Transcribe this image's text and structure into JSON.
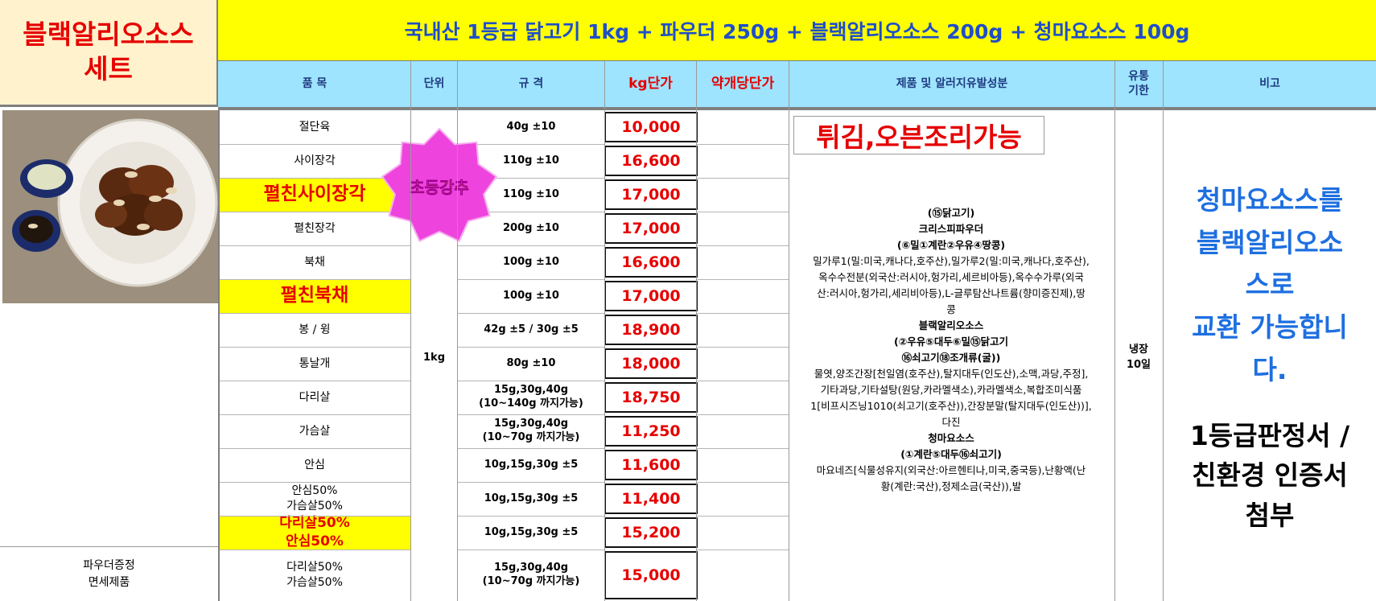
{
  "set_title": [
    "블랙알리오소스",
    "세트"
  ],
  "banner": "국내산 1등급 닭고기 1kg + 파우더 250g + 블랙알리오소스 200g + 청마요소스 100g",
  "headers": {
    "item": "품 목",
    "unit": "단위",
    "spec": "규 격",
    "kg_price": "kg단가",
    "approx_price": "약개당단가",
    "allergen": "제품 및 알러지유발성분",
    "shelf": [
      "유통",
      "기한"
    ],
    "note": "비고"
  },
  "rows": [
    {
      "item": [
        "절단육"
      ],
      "spec": [
        "40g ±10"
      ],
      "price": "10,000"
    },
    {
      "item": [
        "사이장각"
      ],
      "spec": [
        "110g ±10"
      ],
      "price": "16,600"
    },
    {
      "item": [
        "펼친사이장각"
      ],
      "spec": [
        "110g ±10"
      ],
      "price": "17,000",
      "highlight": true
    },
    {
      "item": [
        "펼친장각"
      ],
      "spec": [
        "200g ±10"
      ],
      "price": "17,000"
    },
    {
      "item": [
        "북채"
      ],
      "spec": [
        "100g ±10"
      ],
      "price": "16,600"
    },
    {
      "item": [
        "펼친북채"
      ],
      "spec": [
        "100g ±10"
      ],
      "price": "17,000",
      "highlight": true
    },
    {
      "item": [
        "봉 / 윙"
      ],
      "spec": [
        "42g ±5 / 30g ±5"
      ],
      "price": "18,900"
    },
    {
      "item": [
        "통날개"
      ],
      "spec": [
        "80g ±10"
      ],
      "price": "18,000"
    },
    {
      "item": [
        "다리살"
      ],
      "spec": [
        "15g,30g,40g",
        "(10~140g 까지가능)"
      ],
      "price": "18,750"
    },
    {
      "item": [
        "가슴살"
      ],
      "spec": [
        "15g,30g,40g",
        "(10~70g 까지가능)"
      ],
      "price": "11,250"
    },
    {
      "item": [
        "안심"
      ],
      "spec": [
        "10g,15g,30g ±5"
      ],
      "price": "11,600"
    },
    {
      "item": [
        "안심50%",
        "가슴살50%"
      ],
      "spec": [
        "10g,15g,30g ±5"
      ],
      "price": "11,400"
    },
    {
      "item": [
        "다리살50%",
        "안심50%"
      ],
      "spec": [
        "10g,15g,30g ±5"
      ],
      "price": "15,200",
      "highlight": true
    },
    {
      "item": [
        "다리살50%",
        "가슴살50%"
      ],
      "spec": [
        "15g,30g,40g",
        "(10~70g 까지가능)"
      ],
      "price": "15,000"
    }
  ],
  "unit": "1kg",
  "badge": "초등강추",
  "allergen_box": "튀김,오븐조리가능",
  "allergen_text": [
    {
      "t": "(⑮닭고기)",
      "b": true
    },
    {
      "t": "크리스피파우더",
      "b": true
    },
    {
      "t": "(⑥밀①계란②우유④땅콩)",
      "b": true
    },
    {
      "t": "밀가루1(밀:미국,캐나다,호주산),밀가루2(밀:미국,캐나다,호주산),",
      "b": false
    },
    {
      "t": "옥수수전분(외국산:러시아,헝가리,세르비아등),옥수수가루(외국",
      "b": false
    },
    {
      "t": "산:러시아,헝가리,세리비아등),L-글루탐산나트륨(향미증진제),땅",
      "b": false
    },
    {
      "t": "콩",
      "b": false
    },
    {
      "t": "블랙알리오소스",
      "b": true
    },
    {
      "t": "(②우유⑤대두⑥밀⑮닭고기",
      "b": true
    },
    {
      "t": "⑯쇠고기⑱조개류(굴))",
      "b": true
    },
    {
      "t": "물엿,양조간장[천일염(호주산),탈지대두(인도산),소맥,과당,주정],",
      "b": false
    },
    {
      "t": "기타과당,기타설탕(원당,카라멜색소),카라멜색소,복합조미식품",
      "b": false
    },
    {
      "t": "1[비프시즈닝1010(쇠고기(호주산)),간장분말(탈지대두(인도산))],",
      "b": false
    },
    {
      "t": "다진",
      "b": false
    },
    {
      "t": "청마요소스",
      "b": true
    },
    {
      "t": "(①계란⑤대두⑯쇠고기)",
      "b": true
    },
    {
      "t": "마요네즈[식물성유지(외국산:아르헨티나,미국,중국등),난황액(난",
      "b": false
    },
    {
      "t": "황(계란:국산),정제소금(국산)),발",
      "b": false
    }
  ],
  "shelf_life": [
    "냉장",
    "10일"
  ],
  "note_blue": [
    "청마요소스를",
    "블랙알리오소",
    "스로",
    "교환 가능합니",
    "다."
  ],
  "note_black": [
    "1등급판정서 /",
    "친환경 인증서",
    "첨부"
  ],
  "powder_label": [
    "파우더증정",
    "면세제품"
  ],
  "colors": {
    "banner_bg": "#ffff00",
    "header_bg": "#9ee4ff",
    "price_red": "#e60000",
    "note_blue": "#1e6fe0",
    "title_bg": "#fff2cc",
    "badge": "#ee44dd"
  }
}
